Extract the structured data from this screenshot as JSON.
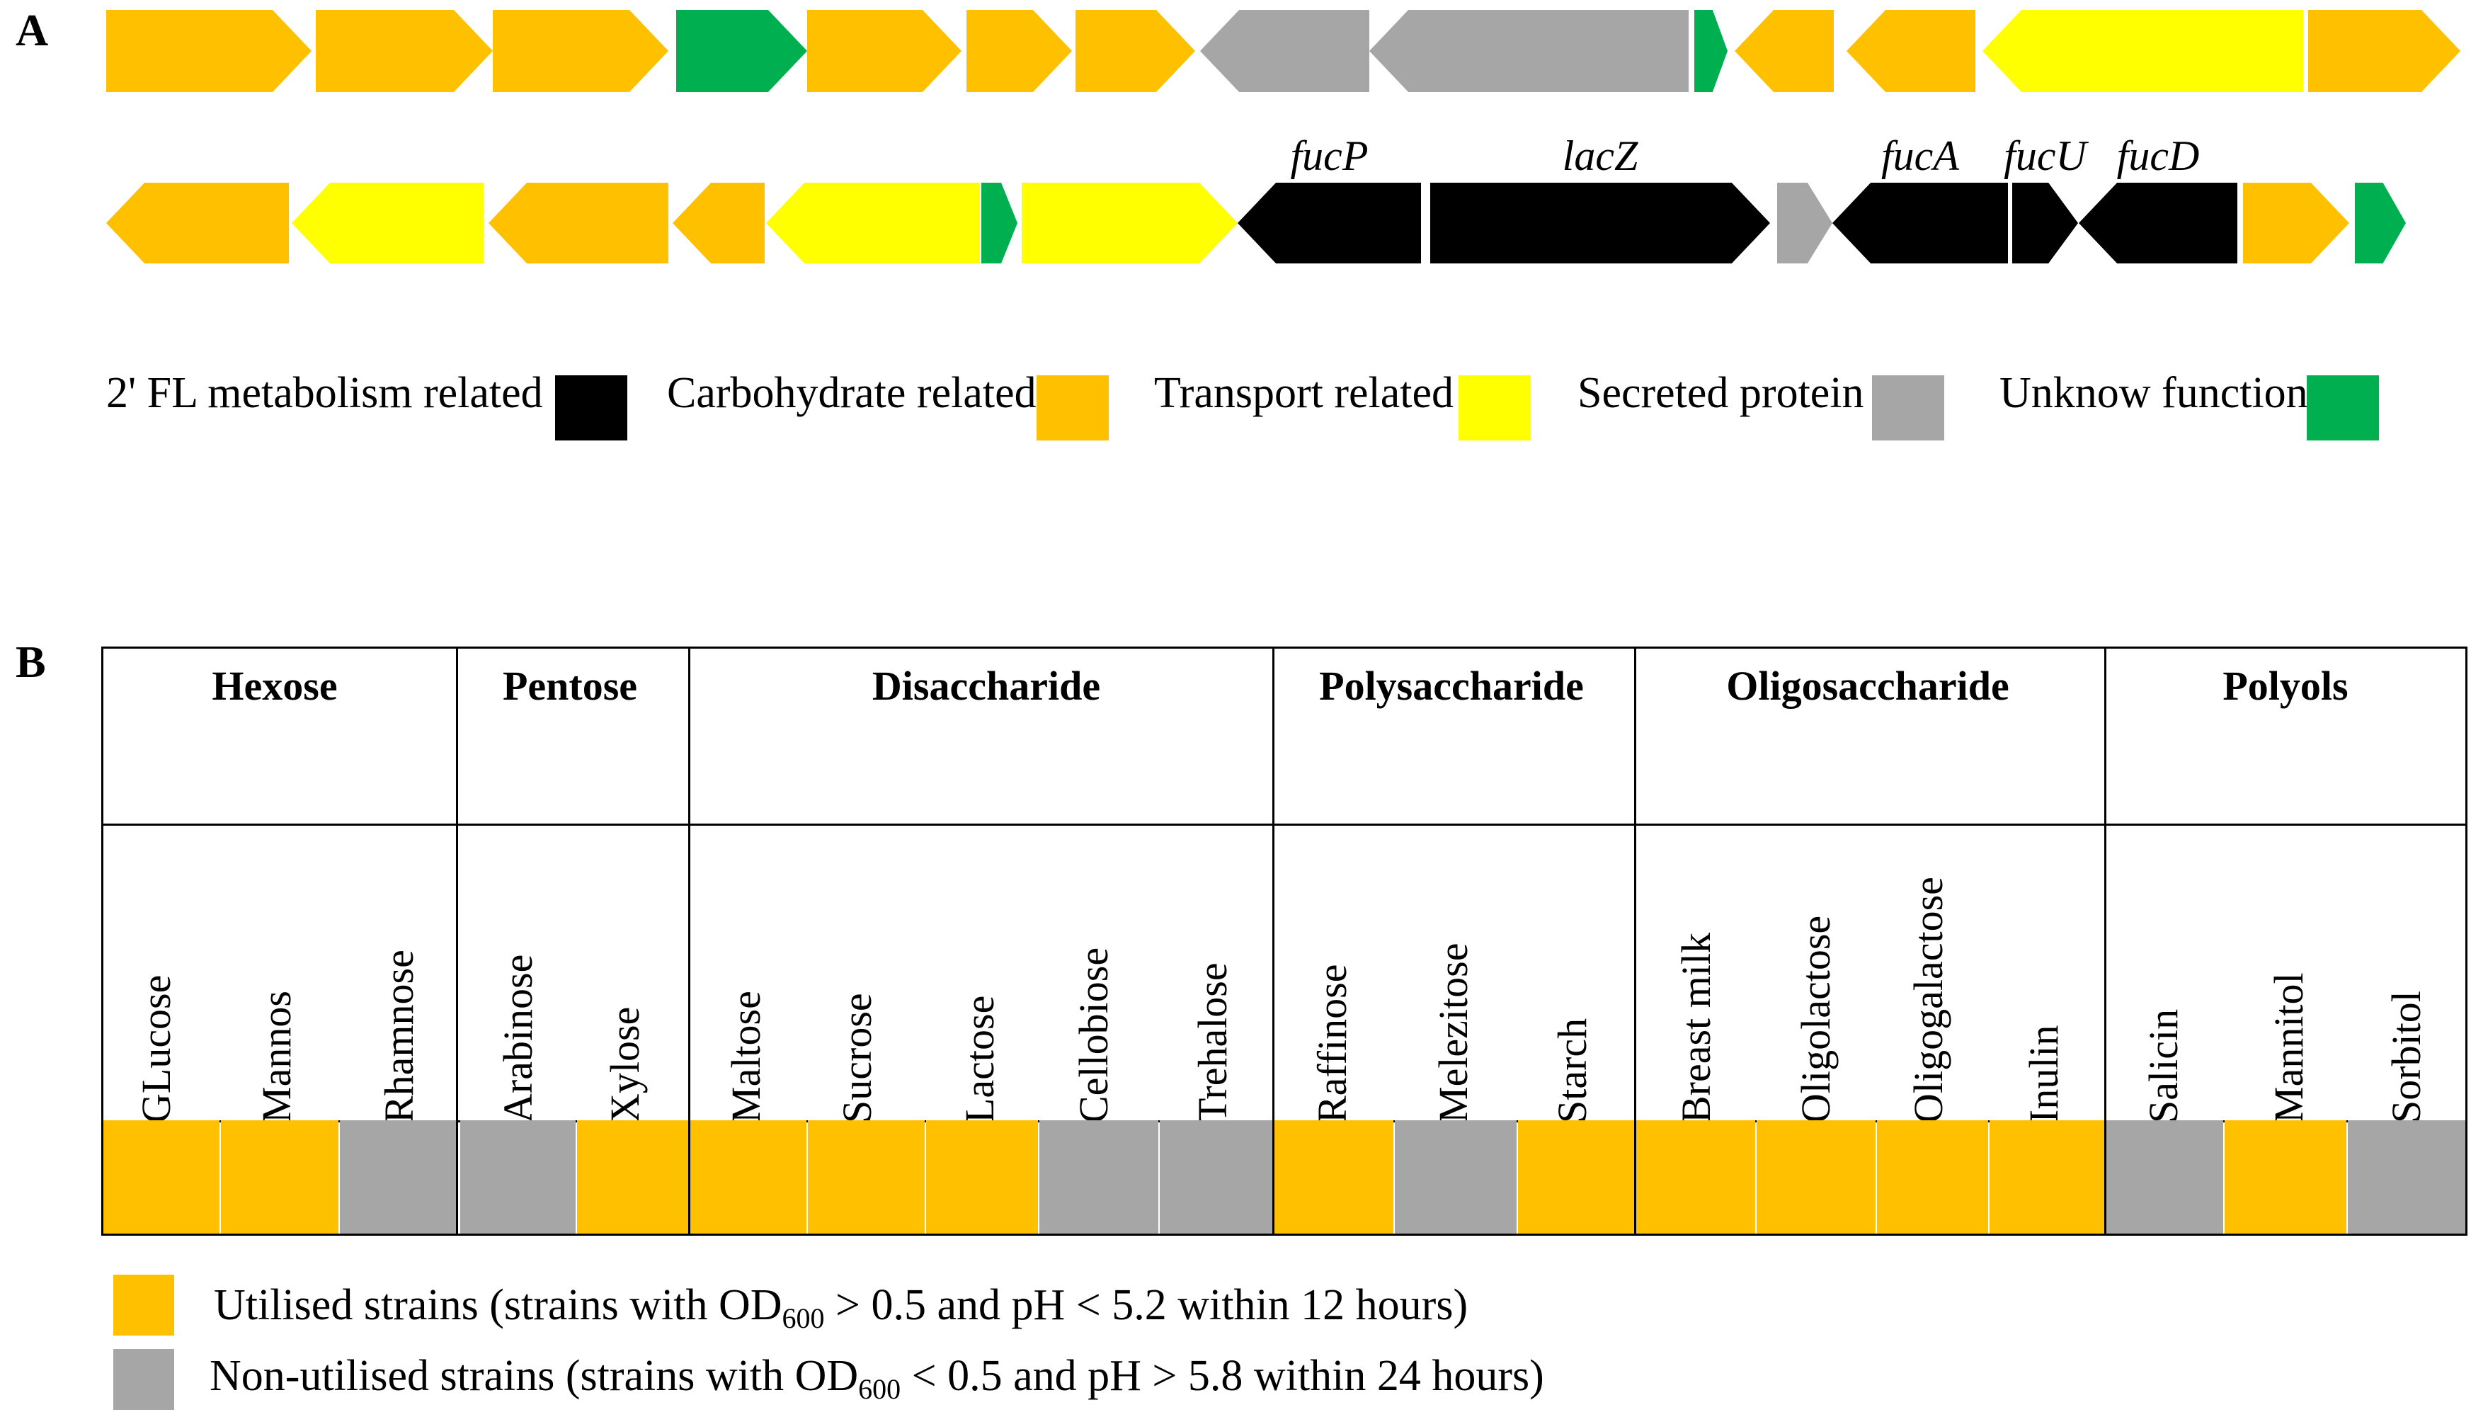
{
  "panel_a": {
    "label": "A",
    "colors": {
      "fl_metabolism": "#000000",
      "carbohydrate": "#FFC000",
      "transport": "#FFFF00",
      "secreted": "#A6A6A6",
      "unknown": "#00B050"
    },
    "row1": [
      {
        "name": "gene-1",
        "type": "carbohydrate",
        "dir": "right"
      },
      {
        "name": "gene-2",
        "type": "carbohydrate",
        "dir": "right"
      },
      {
        "name": "gene-3",
        "type": "carbohydrate",
        "dir": "right"
      },
      {
        "name": "gene-4",
        "type": "unknown",
        "dir": "right"
      },
      {
        "name": "gene-5",
        "type": "carbohydrate",
        "dir": "right"
      },
      {
        "name": "gene-6",
        "type": "carbohydrate",
        "dir": "right"
      },
      {
        "name": "gene-7",
        "type": "carbohydrate",
        "dir": "right"
      },
      {
        "name": "gene-8",
        "type": "secreted",
        "dir": "left"
      },
      {
        "name": "gene-9",
        "type": "secreted",
        "dir": "left"
      },
      {
        "name": "gene-10",
        "type": "unknown",
        "dir": "right"
      },
      {
        "name": "gene-11",
        "type": "carbohydrate",
        "dir": "left"
      },
      {
        "name": "gene-12",
        "type": "carbohydrate",
        "dir": "left"
      },
      {
        "name": "gene-13",
        "type": "transport",
        "dir": "left"
      },
      {
        "name": "gene-14",
        "type": "carbohydrate",
        "dir": "right"
      }
    ],
    "row2": [
      {
        "name": "gene-15",
        "type": "carbohydrate",
        "dir": "left",
        "label": ""
      },
      {
        "name": "gene-16",
        "type": "transport",
        "dir": "left",
        "label": ""
      },
      {
        "name": "gene-17",
        "type": "carbohydrate",
        "dir": "left",
        "label": ""
      },
      {
        "name": "gene-18",
        "type": "carbohydrate",
        "dir": "left",
        "label": ""
      },
      {
        "name": "gene-19",
        "type": "transport",
        "dir": "left",
        "label": ""
      },
      {
        "name": "gene-20",
        "type": "unknown",
        "dir": "right",
        "label": ""
      },
      {
        "name": "gene-21",
        "type": "transport",
        "dir": "right",
        "label": ""
      },
      {
        "name": "gene-fucP",
        "type": "fl_metabolism",
        "dir": "left",
        "label": "fucP"
      },
      {
        "name": "gene-lacZ",
        "type": "fl_metabolism",
        "dir": "right",
        "label": "lacZ"
      },
      {
        "name": "gene-22",
        "type": "secreted",
        "dir": "right",
        "label": ""
      },
      {
        "name": "gene-fucA",
        "type": "fl_metabolism",
        "dir": "left",
        "label": "fucA"
      },
      {
        "name": "gene-fucU",
        "type": "fl_metabolism",
        "dir": "right",
        "label": "fucU"
      },
      {
        "name": "gene-fucD",
        "type": "fl_metabolism",
        "dir": "left",
        "label": "fucD"
      },
      {
        "name": "gene-23",
        "type": "carbohydrate",
        "dir": "right",
        "label": ""
      },
      {
        "name": "gene-24",
        "type": "unknown",
        "dir": "right",
        "label": ""
      }
    ],
    "legend": [
      {
        "label": "2' FL metabolism related",
        "type": "fl_metabolism"
      },
      {
        "label": "Carbohydrate related",
        "type": "carbohydrate"
      },
      {
        "label": "Transport related",
        "type": "transport"
      },
      {
        "label": "Secreted protein",
        "type": "secreted"
      },
      {
        "label": "Unknow function",
        "type": "unknown"
      }
    ]
  },
  "panel_b": {
    "label": "B",
    "colors": {
      "utilised": "#FFC000",
      "non_utilised": "#A6A6A6"
    },
    "categories": [
      {
        "name": "Hexose",
        "sugars": [
          {
            "name": "GLucose",
            "status": "utilised"
          },
          {
            "name": "Mannos",
            "status": "utilised"
          },
          {
            "name": "Rhamnose",
            "status": "non_utilised"
          }
        ]
      },
      {
        "name": "Pentose",
        "sugars": [
          {
            "name": "Arabinose",
            "status": "non_utilised"
          },
          {
            "name": "Xylose",
            "status": "utilised"
          }
        ]
      },
      {
        "name": "Disaccharide",
        "sugars": [
          {
            "name": "Maltose",
            "status": "utilised"
          },
          {
            "name": "Sucrose",
            "status": "utilised"
          },
          {
            "name": "Lactose",
            "status": "utilised"
          },
          {
            "name": "Cellobiose",
            "status": "non_utilised"
          },
          {
            "name": "Trehalose",
            "status": "non_utilised"
          }
        ]
      },
      {
        "name": "Polysaccharide",
        "sugars": [
          {
            "name": "Raffinose",
            "status": "utilised"
          },
          {
            "name": "Melezitose",
            "status": "non_utilised"
          },
          {
            "name": "Starch",
            "status": "utilised"
          }
        ]
      },
      {
        "name": "Oligosaccharide",
        "sugars": [
          {
            "name": "Breast milk",
            "status": "utilised"
          },
          {
            "name": "Oligolactose",
            "status": "utilised"
          },
          {
            "name": "Oligogalactose",
            "status": "utilised"
          },
          {
            "name": "Inulin",
            "status": "utilised"
          }
        ]
      },
      {
        "name": "Polyols",
        "sugars": [
          {
            "name": "Salicin",
            "status": "non_utilised"
          },
          {
            "name": "Mannitol",
            "status": "utilised"
          },
          {
            "name": "Sorbitol",
            "status": "non_utilised"
          }
        ]
      }
    ],
    "legend": {
      "utilised": {
        "pre": "Utilised strains (strains with OD",
        "sub": "600",
        "post": " > 0.5 and pH < 5.2 within 12 hours)"
      },
      "non_utilised": {
        "pre": "Non-utilised strains (strains with OD",
        "sub": "600",
        "post": " < 0.5 and pH > 5.8 within 24 hours)"
      }
    }
  }
}
